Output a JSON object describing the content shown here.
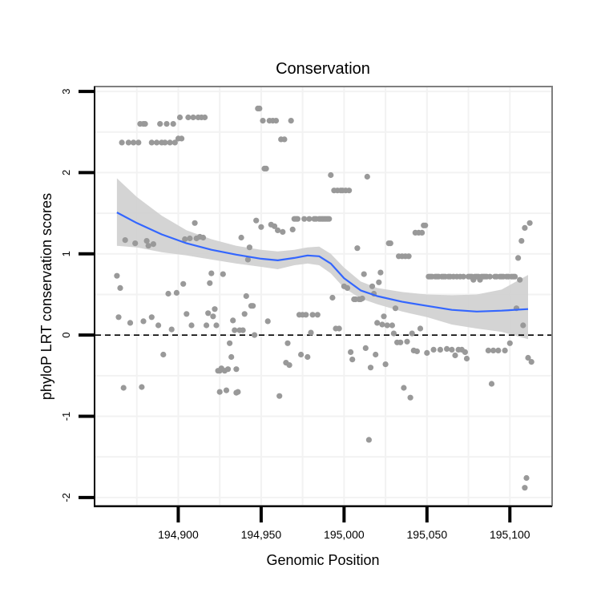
{
  "chart_data": {
    "type": "scatter",
    "title": "Conservation",
    "xlabel": "Genomic Position",
    "ylabel": "phyloP LRT conservation scores",
    "xlim": [
      194850,
      195125
    ],
    "ylim": [
      -2.1,
      3.05
    ],
    "x_ticks": [
      194900,
      194950,
      195000,
      195050,
      195100
    ],
    "x_tick_labels": [
      "194,900",
      "194,950",
      "195,000",
      "195,050",
      "195,100"
    ],
    "y_ticks": [
      3,
      2,
      1,
      0,
      -1,
      -2
    ],
    "y_tick_labels": [
      "3",
      "2",
      "1",
      "0",
      "-1",
      "-2"
    ],
    "grid": true,
    "reference_line": {
      "y": 0,
      "style": "dashed"
    },
    "colors": {
      "points": "#999999",
      "smooth": "#3366ff",
      "band": "#cfcfcf",
      "reference": "#000000",
      "panel_border": "#7f7f7f",
      "grid": "#f2f2f2"
    },
    "smooth": {
      "x": [
        194863,
        194875,
        194890,
        194905,
        194920,
        194935,
        194950,
        194960,
        194970,
        194978,
        194985,
        194992,
        195000,
        195010,
        195020,
        195035,
        195050,
        195065,
        195080,
        195095,
        195111
      ],
      "y": [
        1.51,
        1.38,
        1.24,
        1.13,
        1.05,
        0.99,
        0.94,
        0.92,
        0.95,
        0.98,
        0.97,
        0.88,
        0.7,
        0.55,
        0.48,
        0.41,
        0.36,
        0.31,
        0.29,
        0.3,
        0.32
      ],
      "lower": [
        1.1,
        1.08,
        1.02,
        0.98,
        0.93,
        0.88,
        0.84,
        0.81,
        0.86,
        0.88,
        0.86,
        0.76,
        0.58,
        0.45,
        0.38,
        0.29,
        0.22,
        0.13,
        0.08,
        0.04,
        -0.05
      ],
      "upper": [
        1.93,
        1.7,
        1.47,
        1.29,
        1.18,
        1.1,
        1.05,
        1.03,
        1.05,
        1.08,
        1.09,
        1.0,
        0.83,
        0.66,
        0.58,
        0.53,
        0.5,
        0.49,
        0.5,
        0.56,
        0.74
      ]
    },
    "points": [
      [
        194863,
        0.73
      ],
      [
        194864,
        0.22
      ],
      [
        194865,
        0.58
      ],
      [
        194866,
        2.37
      ],
      [
        194867,
        -0.65
      ],
      [
        194868,
        1.17
      ],
      [
        194870,
        2.37
      ],
      [
        194871,
        0.15
      ],
      [
        194873,
        2.37
      ],
      [
        194874,
        1.13
      ],
      [
        194876,
        2.37
      ],
      [
        194877,
        2.6
      ],
      [
        194878,
        -0.64
      ],
      [
        194879,
        2.6
      ],
      [
        194879,
        0.17
      ],
      [
        194880,
        2.6
      ],
      [
        194881,
        1.16
      ],
      [
        194882,
        1.1
      ],
      [
        194884,
        2.37
      ],
      [
        194884,
        0.22
      ],
      [
        194885,
        1.12
      ],
      [
        194887,
        2.37
      ],
      [
        194888,
        0.12
      ],
      [
        194889,
        2.6
      ],
      [
        194890,
        2.37
      ],
      [
        194891,
        -0.24
      ],
      [
        194892,
        2.37
      ],
      [
        194893,
        2.6
      ],
      [
        194894,
        0.51
      ],
      [
        194895,
        2.37
      ],
      [
        194896,
        0.07
      ],
      [
        194897,
        2.6
      ],
      [
        194898,
        2.37
      ],
      [
        194899,
        0.52
      ],
      [
        194900,
        2.42
      ],
      [
        194901,
        2.68
      ],
      [
        194902,
        2.42
      ],
      [
        194903,
        0.63
      ],
      [
        194904,
        1.18
      ],
      [
        194905,
        0.26
      ],
      [
        194906,
        2.68
      ],
      [
        194907,
        1.19
      ],
      [
        194908,
        0.12
      ],
      [
        194909,
        2.68
      ],
      [
        194910,
        1.38
      ],
      [
        194911,
        1.19
      ],
      [
        194912,
        2.68
      ],
      [
        194913,
        1.21
      ],
      [
        194914,
        2.68
      ],
      [
        194915,
        1.2
      ],
      [
        194916,
        2.68
      ],
      [
        194917,
        0.12
      ],
      [
        194918,
        0.27
      ],
      [
        194919,
        0.64
      ],
      [
        194920,
        0.76
      ],
      [
        194921,
        0.23
      ],
      [
        194922,
        0.32
      ],
      [
        194923,
        0.12
      ],
      [
        194924,
        -0.44
      ],
      [
        194925,
        -0.7
      ],
      [
        194925,
        -0.44
      ],
      [
        194926,
        -0.41
      ],
      [
        194927,
        0.75
      ],
      [
        194928,
        -0.44
      ],
      [
        194929,
        -0.68
      ],
      [
        194930,
        -0.42
      ],
      [
        194931,
        -0.1
      ],
      [
        194932,
        -0.27
      ],
      [
        194933,
        0.18
      ],
      [
        194934,
        0.06
      ],
      [
        194935,
        -0.71
      ],
      [
        194935,
        -0.42
      ],
      [
        194936,
        -0.7
      ],
      [
        194937,
        0.06
      ],
      [
        194938,
        1.2
      ],
      [
        194939,
        0.06
      ],
      [
        194940,
        0.26
      ],
      [
        194941,
        0.48
      ],
      [
        194942,
        0.93
      ],
      [
        194943,
        1.08
      ],
      [
        194944,
        0.36
      ],
      [
        194945,
        0.36
      ],
      [
        194946,
        0.0
      ],
      [
        194947,
        1.41
      ],
      [
        194948,
        2.79
      ],
      [
        194949,
        2.79
      ],
      [
        194950,
        1.33
      ],
      [
        194951,
        2.64
      ],
      [
        194952,
        2.05
      ],
      [
        194953,
        2.05
      ],
      [
        194954,
        0.17
      ],
      [
        194955,
        2.64
      ],
      [
        194956,
        1.36
      ],
      [
        194957,
        2.64
      ],
      [
        194958,
        1.34
      ],
      [
        194959,
        2.64
      ],
      [
        194960,
        1.29
      ],
      [
        194961,
        -0.75
      ],
      [
        194962,
        2.41
      ],
      [
        194963,
        1.27
      ],
      [
        194964,
        2.41
      ],
      [
        194965,
        -0.34
      ],
      [
        194966,
        -0.1
      ],
      [
        194967,
        -0.37
      ],
      [
        194968,
        2.64
      ],
      [
        194969,
        1.3
      ],
      [
        194970,
        1.43
      ],
      [
        194971,
        1.43
      ],
      [
        194972,
        1.43
      ],
      [
        194973,
        0.25
      ],
      [
        194974,
        -0.24
      ],
      [
        194975,
        0.25
      ],
      [
        194976,
        1.43
      ],
      [
        194977,
        0.25
      ],
      [
        194978,
        -0.27
      ],
      [
        194979,
        1.43
      ],
      [
        194980,
        0.03
      ],
      [
        194981,
        0.25
      ],
      [
        194982,
        1.43
      ],
      [
        194983,
        1.43
      ],
      [
        194984,
        0.25
      ],
      [
        194985,
        1.43
      ],
      [
        194986,
        1.43
      ],
      [
        194987,
        1.43
      ],
      [
        194988,
        1.43
      ],
      [
        194989,
        1.43
      ],
      [
        194990,
        1.43
      ],
      [
        194991,
        1.43
      ],
      [
        194992,
        1.97
      ],
      [
        194993,
        0.46
      ],
      [
        194994,
        1.78
      ],
      [
        194995,
        0.08
      ],
      [
        194996,
        1.78
      ],
      [
        194997,
        0.08
      ],
      [
        194998,
        1.78
      ],
      [
        194999,
        1.78
      ],
      [
        195000,
        0.6
      ],
      [
        195001,
        1.78
      ],
      [
        195002,
        0.58
      ],
      [
        195003,
        1.78
      ],
      [
        195004,
        -0.21
      ],
      [
        195005,
        -0.3
      ],
      [
        195006,
        0.44
      ],
      [
        195007,
        0.44
      ],
      [
        195008,
        1.07
      ],
      [
        195009,
        0.44
      ],
      [
        195010,
        0.44
      ],
      [
        195011,
        0.45
      ],
      [
        195012,
        0.75
      ],
      [
        195013,
        -0.16
      ],
      [
        195014,
        1.95
      ],
      [
        195015,
        -1.29
      ],
      [
        195016,
        -0.4
      ],
      [
        195017,
        0.6
      ],
      [
        195018,
        0.51
      ],
      [
        195019,
        -0.24
      ],
      [
        195020,
        0.15
      ],
      [
        195021,
        0.65
      ],
      [
        195022,
        0.77
      ],
      [
        195023,
        0.13
      ],
      [
        195024,
        0.23
      ],
      [
        195025,
        -0.36
      ],
      [
        195026,
        0.12
      ],
      [
        195027,
        1.13
      ],
      [
        195028,
        1.13
      ],
      [
        195029,
        0.12
      ],
      [
        195030,
        0.02
      ],
      [
        195031,
        0.33
      ],
      [
        195032,
        -0.09
      ],
      [
        195033,
        0.97
      ],
      [
        195034,
        -0.09
      ],
      [
        195035,
        0.97
      ],
      [
        195036,
        -0.65
      ],
      [
        195037,
        0.97
      ],
      [
        195038,
        -0.08
      ],
      [
        195039,
        0.97
      ],
      [
        195040,
        -0.77
      ],
      [
        195041,
        0.02
      ],
      [
        195042,
        -0.19
      ],
      [
        195043,
        1.26
      ],
      [
        195044,
        -0.2
      ],
      [
        195045,
        1.26
      ],
      [
        195046,
        0.08
      ],
      [
        195047,
        1.26
      ],
      [
        195048,
        1.35
      ],
      [
        195049,
        1.35
      ],
      [
        195050,
        -0.22
      ],
      [
        195051,
        0.72
      ],
      [
        195052,
        0.72
      ],
      [
        195053,
        0.72
      ],
      [
        195054,
        -0.18
      ],
      [
        195055,
        0.72
      ],
      [
        195056,
        0.72
      ],
      [
        195057,
        0.72
      ],
      [
        195058,
        -0.18
      ],
      [
        195059,
        0.72
      ],
      [
        195060,
        0.72
      ],
      [
        195061,
        0.72
      ],
      [
        195062,
        -0.17
      ],
      [
        195063,
        0.72
      ],
      [
        195064,
        0.72
      ],
      [
        195065,
        -0.18
      ],
      [
        195066,
        0.72
      ],
      [
        195067,
        -0.25
      ],
      [
        195068,
        0.72
      ],
      [
        195069,
        -0.18
      ],
      [
        195070,
        0.72
      ],
      [
        195071,
        -0.18
      ],
      [
        195072,
        0.72
      ],
      [
        195073,
        -0.21
      ],
      [
        195074,
        -0.29
      ],
      [
        195075,
        0.72
      ],
      [
        195076,
        0.72
      ],
      [
        195077,
        0.72
      ],
      [
        195078,
        0.68
      ],
      [
        195079,
        0.72
      ],
      [
        195080,
        0.72
      ],
      [
        195081,
        0.72
      ],
      [
        195082,
        0.68
      ],
      [
        195083,
        0.72
      ],
      [
        195084,
        0.72
      ],
      [
        195085,
        0.72
      ],
      [
        195086,
        0.72
      ],
      [
        195087,
        -0.19
      ],
      [
        195088,
        0.72
      ],
      [
        195089,
        -0.6
      ],
      [
        195090,
        -0.19
      ],
      [
        195091,
        0.72
      ],
      [
        195092,
        0.72
      ],
      [
        195093,
        -0.19
      ],
      [
        195094,
        0.72
      ],
      [
        195095,
        0.72
      ],
      [
        195096,
        0.72
      ],
      [
        195097,
        -0.19
      ],
      [
        195098,
        0.72
      ],
      [
        195099,
        0.72
      ],
      [
        195100,
        -0.1
      ],
      [
        195101,
        0.72
      ],
      [
        195102,
        0.72
      ],
      [
        195103,
        0.72
      ],
      [
        195104,
        0.33
      ],
      [
        195105,
        0.95
      ],
      [
        195106,
        0.68
      ],
      [
        195107,
        1.16
      ],
      [
        195108,
        0.12
      ],
      [
        195109,
        1.32
      ],
      [
        195109,
        -1.88
      ],
      [
        195110,
        -1.76
      ],
      [
        195111,
        -0.28
      ],
      [
        195112,
        1.38
      ],
      [
        195113,
        -0.33
      ]
    ]
  }
}
